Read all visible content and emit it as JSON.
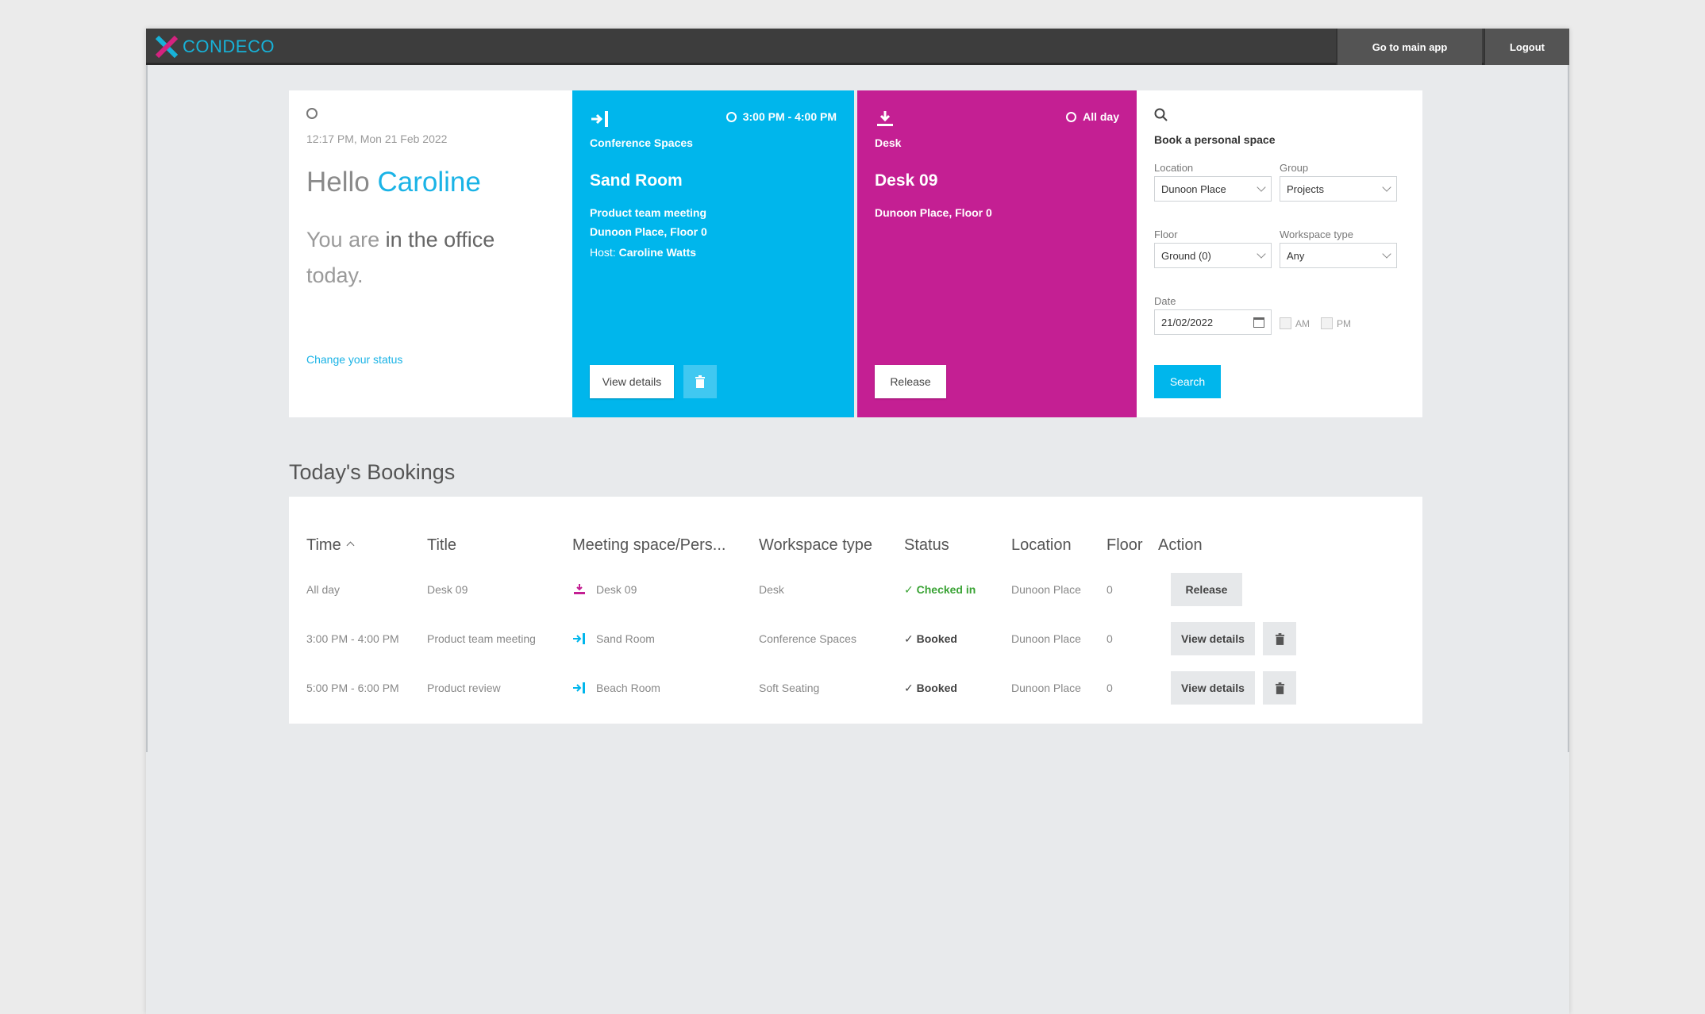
{
  "header": {
    "logo_text": "CONDECO",
    "go_main": "Go to main app",
    "logout": "Logout"
  },
  "status_card": {
    "datetime": "12:17 PM, Mon 21 Feb 2022",
    "hello": "Hello",
    "name": "Caroline",
    "you_are": "You are",
    "status": "in the office",
    "today": "today.",
    "change_link": "Change your status"
  },
  "room_card": {
    "time": "3:00 PM - 4:00 PM",
    "type": "Conference Spaces",
    "title": "Sand Room",
    "meeting": "Product team meeting",
    "location": "Dunoon Place, Floor 0",
    "host_label": "Host:",
    "host": "Caroline Watts",
    "view_btn": "View details",
    "color": "#00b6ec"
  },
  "desk_card": {
    "time": "All day",
    "type": "Desk",
    "title": "Desk 09",
    "location": "Dunoon Place, Floor 0",
    "release_btn": "Release",
    "color": "#c41f93"
  },
  "search_card": {
    "title": "Book a personal space",
    "location_label": "Location",
    "location_value": "Dunoon Place",
    "group_label": "Group",
    "group_value": "Projects",
    "floor_label": "Floor",
    "floor_value": "Ground (0)",
    "workspace_label": "Workspace type",
    "workspace_value": "Any",
    "date_label": "Date",
    "date_value": "21/02/2022",
    "am": "AM",
    "pm": "PM",
    "search_btn": "Search"
  },
  "bookings": {
    "title": "Today's Bookings",
    "headers": [
      "Time",
      "Title",
      "Meeting space/Pers...",
      "Workspace type",
      "Status",
      "Location",
      "Floor",
      "Action"
    ],
    "rows": [
      {
        "time": "All day",
        "title": "Desk 09",
        "space": "Desk 09",
        "type": "Desk",
        "status": "Checked in",
        "location": "Dunoon Place",
        "floor": "0",
        "action": "Release"
      },
      {
        "time": "3:00 PM - 4:00 PM",
        "title": "Product team meeting",
        "space": "Sand Room",
        "type": "Conference Spaces",
        "status": "Booked",
        "location": "Dunoon Place",
        "floor": "0",
        "action": "View details"
      },
      {
        "time": "5:00 PM - 6:00 PM",
        "title": "Product review",
        "space": "Beach Room",
        "type": "Soft Seating",
        "status": "Booked",
        "location": "Dunoon Place",
        "floor": "0",
        "action": "View details"
      }
    ]
  }
}
